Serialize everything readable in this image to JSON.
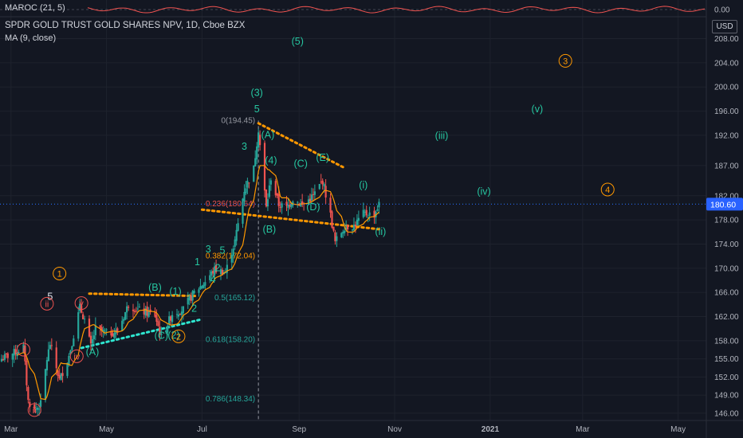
{
  "indicator": {
    "label": "MAROC (21, 5)",
    "zero_label": "0.00"
  },
  "header": {
    "title": "SPDR GOLD TRUST GOLD SHARES NPV, 1D, Cboe BZX",
    "ma_label": "MA (9, close)"
  },
  "axis": {
    "currency": "USD"
  },
  "colors": {
    "background": "#131722",
    "up": "#26a69a",
    "down": "#ef5350",
    "ma": "#ff9800",
    "wave_green": "#26c6a0",
    "wave_orange": "#ff9800",
    "wave_red": "#ef5350",
    "fib_orange": "#ff9800",
    "fib_green": "#26a69a",
    "fib_red": "#ef5350",
    "teal_dots": "#2ee6d0",
    "axis_text": "#b2b5be",
    "current_price_bg": "#2962ff"
  },
  "chart_data": {
    "type": "candlestick",
    "title": "SPDR GOLD TRUST GOLD SHARES NPV, 1D, Cboe BZX",
    "x_ticks": [
      "Mar",
      "May",
      "Jul",
      "Sep",
      "Nov",
      "2021",
      "Mar",
      "May"
    ],
    "y_ticks": [
      146,
      149,
      152,
      155,
      158,
      162,
      166,
      170,
      174,
      178,
      182,
      187,
      192,
      196,
      200,
      204,
      208
    ],
    "y_range": [
      144.8,
      211.5
    ],
    "current_price": 180.6,
    "fib_levels": [
      {
        "ratio": "0",
        "price": 194.45,
        "label": "0(194.45)"
      },
      {
        "ratio": "0.236",
        "price": 180.64,
        "label": "0.236(180.64)"
      },
      {
        "ratio": "0.382",
        "price": 172.04,
        "label": "0.382(172.04)"
      },
      {
        "ratio": "0.5",
        "price": 165.12,
        "label": "0.5(165.12)"
      },
      {
        "ratio": "0.618",
        "price": 158.2,
        "label": "0.618(158.20)"
      },
      {
        "ratio": "0.786",
        "price": 148.34,
        "label": "0.786(148.34)"
      }
    ],
    "wave_labels": [
      {
        "text": "(3)",
        "date": "2020-08-05",
        "price": 198.5
      },
      {
        "text": "(5)",
        "date": "2020-08-31",
        "price": 207.0
      },
      {
        "text": "5",
        "date": "2020-08-05",
        "price": 195.8
      },
      {
        "text": "3",
        "date": "2020-07-28",
        "price": 189.6
      },
      {
        "text": "(A)",
        "date": "2020-08-12",
        "price": 191.5
      },
      {
        "text": "(4)",
        "date": "2020-08-14",
        "price": 187.3
      },
      {
        "text": "(C)",
        "date": "2020-09-02",
        "price": 186.8
      },
      {
        "text": "(E)",
        "date": "2020-09-16",
        "price": 187.8
      },
      {
        "text": "(D)",
        "date": "2020-09-10",
        "price": 179.6
      },
      {
        "text": "(B)",
        "date": "2020-08-13",
        "price": 175.9
      },
      {
        "text": "(i)",
        "date": "2020-10-12",
        "price": 183.2
      },
      {
        "text": "(ii)",
        "date": "2020-10-23",
        "price": 175.5
      },
      {
        "text": "(iii)",
        "date": "2020-12-01",
        "price": 191.4
      },
      {
        "text": "(iv)",
        "date": "2020-12-28",
        "price": 182.2
      },
      {
        "text": "(v)",
        "date": "2021-01-31",
        "price": 195.8
      },
      {
        "text": "3",
        "date": "2020-07-05",
        "price": 172.6
      },
      {
        "text": "5",
        "date": "2020-07-14",
        "price": 172.4
      },
      {
        "text": "1",
        "date": "2020-06-28",
        "price": 170.5
      },
      {
        "text": "2",
        "date": "2020-07-11",
        "price": 169.5
      },
      {
        "text": "4",
        "date": "2020-07-08",
        "price": 167.6
      },
      {
        "text": "2",
        "date": "2020-06-26",
        "price": 162.8
      },
      {
        "text": "(B)",
        "date": "2020-06-01",
        "price": 166.3
      },
      {
        "text": "(1)",
        "date": "2020-06-14",
        "price": 165.6
      },
      {
        "text": "(C)",
        "date": "2020-06-05",
        "price": 158.3
      },
      {
        "text": "(2)",
        "date": "2020-06-13",
        "price": 158.4
      },
      {
        "text": "(A)",
        "date": "2020-04-22",
        "price": 155.6
      },
      {
        "text": "5",
        "date": "2020-03-26",
        "price": 164.8
      }
    ],
    "circled_labels": [
      {
        "text": "1",
        "date": "2020-04-01",
        "price": 168.6,
        "color": "orange"
      },
      {
        "text": "2",
        "date": "2020-06-16",
        "price": 158.2,
        "color": "orange"
      },
      {
        "text": "3",
        "date": "2021-02-18",
        "price": 203.8,
        "color": "orange"
      },
      {
        "text": "4",
        "date": "2021-03-17",
        "price": 182.5,
        "color": "orange"
      },
      {
        "text": "ii",
        "date": "2020-03-24",
        "price": 163.6,
        "color": "red"
      },
      {
        "text": "v",
        "date": "2020-04-15",
        "price": 163.7,
        "color": "red"
      },
      {
        "text": "i",
        "date": "2020-03-09",
        "price": 156.0,
        "color": "red"
      },
      {
        "text": "iv",
        "date": "2020-04-12",
        "price": 154.9,
        "color": "red"
      },
      {
        "text": "ii",
        "date": "2020-03-16",
        "price": 146.0,
        "color": "red"
      }
    ]
  }
}
